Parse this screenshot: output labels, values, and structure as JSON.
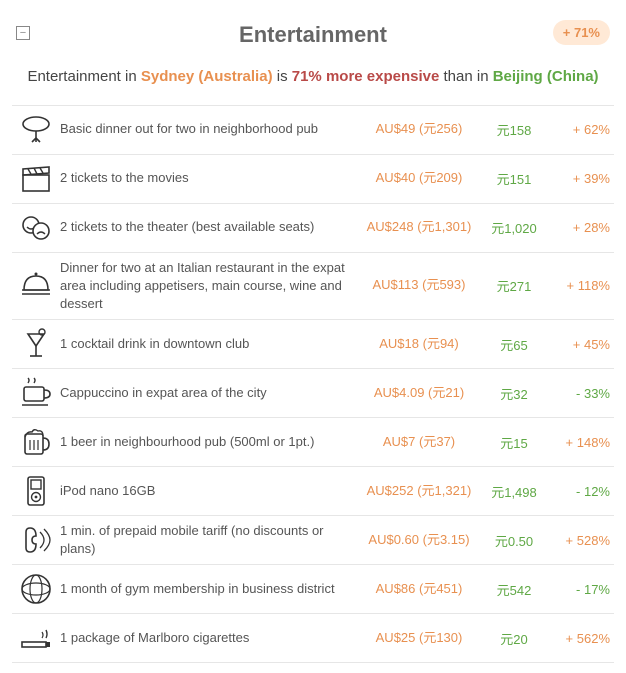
{
  "header": {
    "title": "Entertainment",
    "badge": "+ 71%",
    "toggle_glyph": "−"
  },
  "subtitle": {
    "lead": "Entertainment in ",
    "city1": "Sydney (Australia)",
    "mid": " is ",
    "pct": "71% more expensive",
    "after": " than in ",
    "city2": "Beijing (China)"
  },
  "colors": {
    "city1": "#e89050",
    "city2": "#5fa845",
    "pct": "#b94a48",
    "badge_bg": "#ffe9d6",
    "border": "#e6e6e6",
    "title": "#666666"
  },
  "items": [
    {
      "icon": "sausage",
      "desc": "Basic dinner out for two in neighborhood pub",
      "p1": "AU$49 (元256)",
      "p2": "元158",
      "diff": "+ 62%",
      "dir": "pos"
    },
    {
      "icon": "clapper",
      "desc": "2 tickets to the movies",
      "p1": "AU$40 (元209)",
      "p2": "元151",
      "diff": "+ 39%",
      "dir": "pos"
    },
    {
      "icon": "theater",
      "desc": "2 tickets to the theater (best available seats)",
      "p1": "AU$248 (元1,301)",
      "p2": "元1,020",
      "diff": "+ 28%",
      "dir": "pos"
    },
    {
      "icon": "cloche",
      "desc": "Dinner for two at an Italian restaurant in the expat area including appetisers, main course, wine and dessert",
      "p1": "AU$113 (元593)",
      "p2": "元271",
      "diff": "+ 118%",
      "dir": "pos"
    },
    {
      "icon": "cocktail",
      "desc": "1 cocktail drink in downtown club",
      "p1": "AU$18 (元94)",
      "p2": "元65",
      "diff": "+ 45%",
      "dir": "pos"
    },
    {
      "icon": "coffee",
      "desc": "Cappuccino in expat area of the city",
      "p1": "AU$4.09 (元21)",
      "p2": "元32",
      "diff": "- 33%",
      "dir": "neg"
    },
    {
      "icon": "beer",
      "desc": "1 beer in neighbourhood pub (500ml or 1pt.)",
      "p1": "AU$7 (元37)",
      "p2": "元15",
      "diff": "+ 148%",
      "dir": "pos"
    },
    {
      "icon": "ipod",
      "desc": "iPod nano 16GB",
      "p1": "AU$252 (元1,321)",
      "p2": "元1,498",
      "diff": "- 12%",
      "dir": "neg"
    },
    {
      "icon": "phone",
      "desc": "1 min. of prepaid mobile tariff (no discounts or plans)",
      "p1": "AU$0.60 (元3.15)",
      "p2": "元0.50",
      "diff": "+ 528%",
      "dir": "pos"
    },
    {
      "icon": "gym",
      "desc": "1 month of gym membership in business district",
      "p1": "AU$86 (元451)",
      "p2": "元542",
      "diff": "- 17%",
      "dir": "neg"
    },
    {
      "icon": "cig",
      "desc": "1 package of Marlboro cigarettes",
      "p1": "AU$25 (元130)",
      "p2": "元20",
      "diff": "+ 562%",
      "dir": "pos"
    }
  ]
}
